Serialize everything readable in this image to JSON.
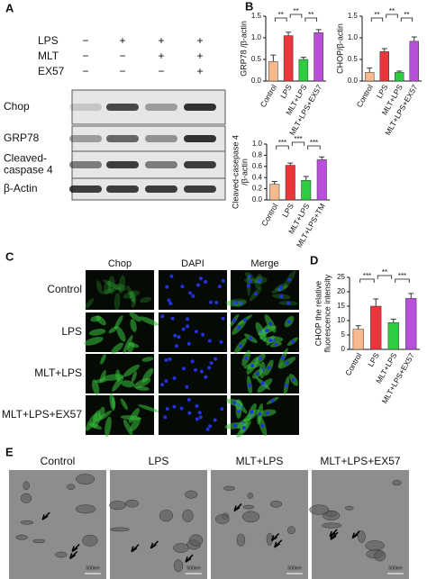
{
  "panels": [
    "A",
    "B",
    "C",
    "D",
    "E"
  ],
  "blot": {
    "treatments": [
      {
        "name": "LPS",
        "signs": [
          "−",
          "+",
          "+",
          "+"
        ]
      },
      {
        "name": "MLT",
        "signs": [
          "−",
          "−",
          "+",
          "+"
        ]
      },
      {
        "name": "EX57",
        "signs": [
          "−",
          "−",
          "−",
          "+"
        ]
      }
    ],
    "band_labels": [
      [
        "Chop"
      ],
      [
        "GRP78"
      ],
      [
        "Cleaved-",
        "caspase 4"
      ],
      [
        "β-Actin"
      ]
    ]
  },
  "chart_data": [
    {
      "type": "bar",
      "ylabel": "GRP78 /β-actin",
      "categories": [
        "Control",
        "LPS",
        "MLT+LPS",
        "MLT+LPS+EX57"
      ],
      "values": [
        0.45,
        1.05,
        0.5,
        1.12
      ],
      "errors": [
        0.15,
        0.08,
        0.05,
        0.07
      ],
      "colors": [
        "#f6b98c",
        "#e8373b",
        "#2ecc40",
        "#b84fd8"
      ],
      "ylim": [
        0,
        1.5
      ],
      "yticks": [
        {
          "value": 0,
          "label": "0.0"
        },
        {
          "value": 0.5,
          "label": "0.5"
        },
        {
          "value": 1,
          "label": "1.0"
        },
        {
          "value": 1.5,
          "label": "1.5"
        }
      ],
      "annotations": [
        "**",
        "**",
        "**"
      ]
    },
    {
      "type": "bar",
      "ylabel": "CHOP/β-actin",
      "categories": [
        "Control",
        "LPS",
        "MLT+LPS",
        "MLT+LPS+EX57"
      ],
      "values": [
        0.2,
        0.68,
        0.2,
        0.92
      ],
      "errors": [
        0.1,
        0.07,
        0.03,
        0.1
      ],
      "colors": [
        "#f6b98c",
        "#e8373b",
        "#2ecc40",
        "#b84fd8"
      ],
      "ylim": [
        0,
        1.5
      ],
      "yticks": [
        {
          "value": 0,
          "label": "0.0"
        },
        {
          "value": 0.5,
          "label": "0.5"
        },
        {
          "value": 1,
          "label": "1.0"
        },
        {
          "value": 1.5,
          "label": "1.5"
        }
      ],
      "annotations": [
        "**",
        "**",
        "**"
      ]
    },
    {
      "type": "bar",
      "ylabel": [
        "Cleaved-casepase 4",
        "/β-actin"
      ],
      "categories": [
        "Control",
        "LPS",
        "MLT+LPS",
        "MLT+LPS+TM"
      ],
      "values": [
        0.28,
        0.62,
        0.35,
        0.72
      ],
      "errors": [
        0.05,
        0.04,
        0.07,
        0.05
      ],
      "colors": [
        "#f6b98c",
        "#e8373b",
        "#2ecc40",
        "#b84fd8"
      ],
      "ylim": [
        0,
        1
      ],
      "yticks": [
        {
          "value": 0,
          "label": "0.0"
        },
        {
          "value": 0.2,
          "label": "0.2"
        },
        {
          "value": 0.4,
          "label": "0.4"
        },
        {
          "value": 0.6,
          "label": "0.6"
        },
        {
          "value": 0.8,
          "label": "0.8"
        },
        {
          "value": 1,
          "label": "1.0"
        }
      ],
      "annotations": [
        "***",
        "***",
        "***"
      ]
    },
    {
      "type": "bar",
      "ylabel": [
        "CHOP the relative",
        "fluorescence intensity"
      ],
      "categories": [
        "Control",
        "LPS",
        "MLT+LPS",
        "MLT+LPS+EX57"
      ],
      "values": [
        7,
        15,
        9.3,
        17.7
      ],
      "errors": [
        1.2,
        2.5,
        1.2,
        1.7
      ],
      "colors": [
        "#f6b98c",
        "#e8373b",
        "#2ecc40",
        "#b84fd8"
      ],
      "ylim": [
        0,
        25
      ],
      "yticks": [
        0,
        5,
        10,
        15,
        20,
        25
      ],
      "annotations": [
        "***",
        "**",
        "***"
      ]
    }
  ],
  "microscopy": {
    "columns": [
      {
        "label": "Chop",
        "color": "#2db34a"
      },
      {
        "label": "DAPI",
        "color": "#2a4fd8"
      },
      {
        "label": "Merge",
        "color": "#111111"
      }
    ],
    "rows": [
      "Control",
      "LPS",
      "MLT+LPS",
      "MLT+LPS+EX57"
    ]
  },
  "tem": {
    "labels": [
      "Control",
      "LPS",
      "MLT+LPS",
      "MLT+LPS+EX57"
    ],
    "scale": "500nm"
  }
}
